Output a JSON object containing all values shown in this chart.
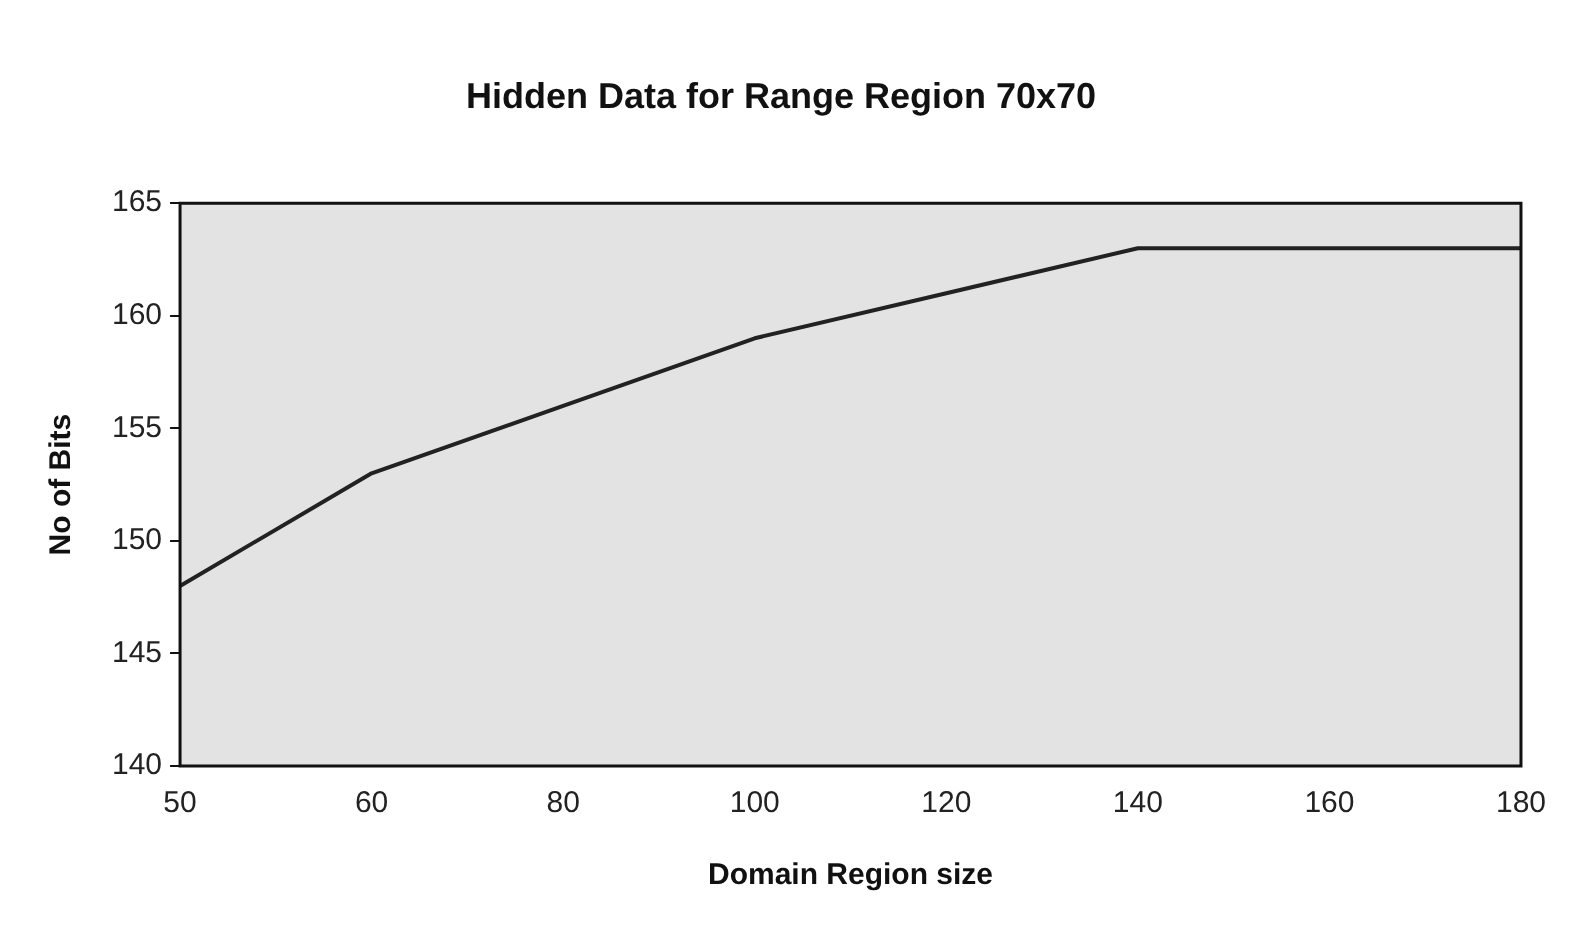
{
  "chart_data": {
    "type": "line",
    "title": "Hidden Data for Range Region 70x70",
    "xlabel": "Domain Region size",
    "ylabel": "No of Bits",
    "categories": [
      "50",
      "60",
      "80",
      "100",
      "120",
      "140",
      "160",
      "180"
    ],
    "series": [
      {
        "color": "#222222",
        "values": [
          148,
          153,
          156,
          159,
          161,
          163,
          163,
          163
        ]
      }
    ],
    "ylim": [
      140,
      165
    ],
    "yticks": [
      140,
      145,
      150,
      155,
      160,
      165
    ],
    "grid": false,
    "legend": false,
    "marker": "none"
  }
}
